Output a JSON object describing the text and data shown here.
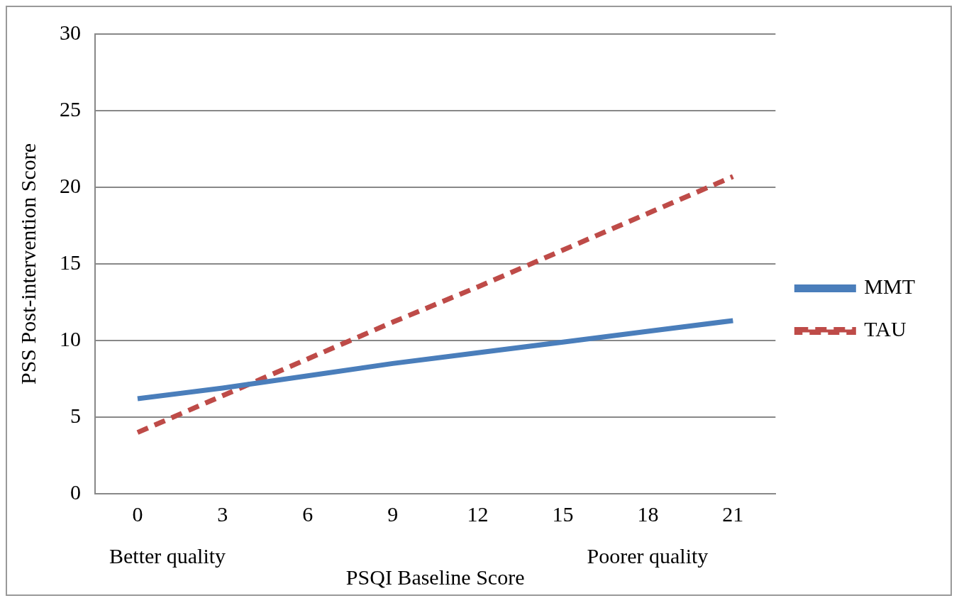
{
  "chart_data": {
    "type": "line",
    "xlabel": "PSQI Baseline Score",
    "ylabel": "PSS Post-intervention Score",
    "categories": [
      "0",
      "3",
      "6",
      "9",
      "12",
      "15",
      "18",
      "21"
    ],
    "series": [
      {
        "name": "MMT",
        "color": "#4a7ebb",
        "values": [
          6.2,
          6.9,
          7.7,
          8.5,
          9.2,
          9.9,
          10.6,
          11.3
        ],
        "line_style": "solid"
      },
      {
        "name": "TAU",
        "color": "#be4b48",
        "values": [
          4.0,
          6.4,
          8.8,
          11.2,
          13.5,
          15.9,
          18.3,
          20.7
        ],
        "line_style": "dashed"
      }
    ],
    "ylim": [
      0,
      30
    ],
    "yticks": [
      0,
      5,
      10,
      15,
      20,
      25,
      30
    ],
    "grid": "y",
    "legend": "right",
    "marker": "none",
    "annotations": [
      "Better quality",
      "Poorer quality"
    ]
  }
}
